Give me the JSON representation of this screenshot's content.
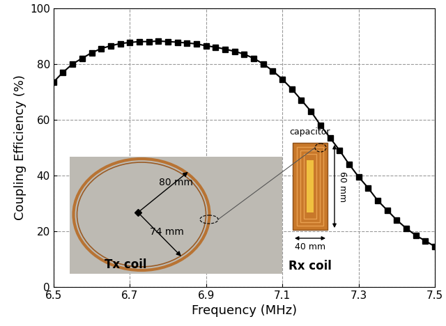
{
  "chart_data": {
    "type": "line",
    "xlabel": "Frequency (MHz)",
    "ylabel": "Coupling Efficiency (%)",
    "x": [
      6.5,
      6.525,
      6.55,
      6.575,
      6.6,
      6.625,
      6.65,
      6.675,
      6.7,
      6.725,
      6.75,
      6.775,
      6.8,
      6.825,
      6.85,
      6.875,
      6.9,
      6.925,
      6.95,
      6.975,
      7.0,
      7.025,
      7.05,
      7.075,
      7.1,
      7.125,
      7.15,
      7.175,
      7.2,
      7.225,
      7.25,
      7.275,
      7.3,
      7.325,
      7.35,
      7.375,
      7.4,
      7.425,
      7.45,
      7.475,
      7.5
    ],
    "values": [
      73.5,
      77,
      80,
      82,
      84,
      85.5,
      86.5,
      87.3,
      87.7,
      88,
      88,
      88.2,
      88,
      87.8,
      87.5,
      87.2,
      86.5,
      86,
      85.3,
      84.5,
      83.5,
      82,
      80,
      77.5,
      74.5,
      71,
      67,
      63,
      58,
      53.5,
      49,
      44,
      39.5,
      35.5,
      31,
      27.5,
      24,
      21,
      18.5,
      16.5,
      14.5
    ],
    "color": "#000000",
    "marker": "square",
    "line_style": "solid",
    "xlim": [
      6.5,
      7.5
    ],
    "ylim": [
      0,
      100
    ],
    "xticks": [
      6.5,
      6.7,
      6.9,
      7.1,
      7.3,
      7.5
    ],
    "yticks": [
      0,
      20,
      40,
      60,
      80,
      100
    ],
    "grid": true,
    "annotations": {
      "tx_coil": "Tx coil",
      "rx_coil": "Rx coil",
      "tx_outer": "80 mm",
      "tx_inner": "74 mm",
      "capacitor": "capacitor",
      "rx_width": "40 mm",
      "rx_height": "60 mm"
    }
  }
}
